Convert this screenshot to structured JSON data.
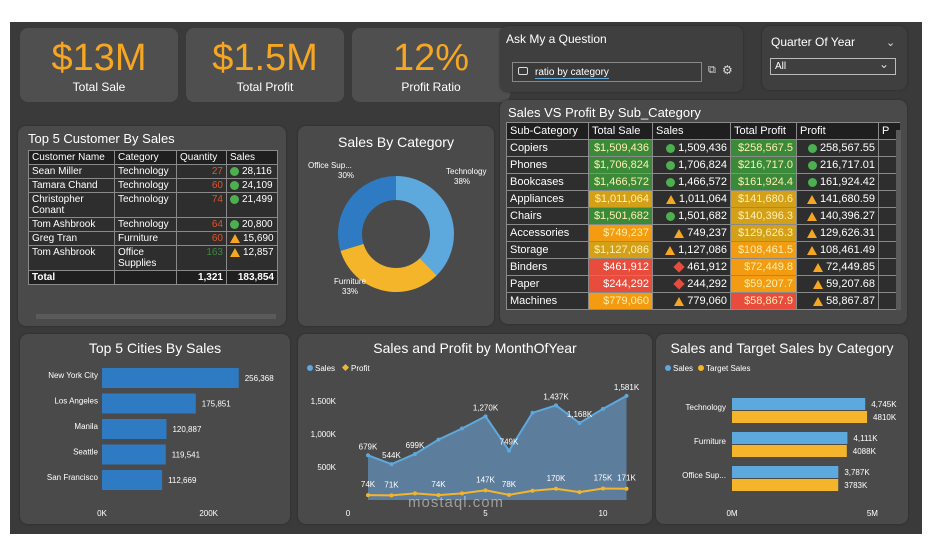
{
  "kpis": {
    "total_sale": {
      "value": "$13M",
      "label": "Total Sale"
    },
    "total_profit": {
      "value": "$1.5M",
      "label": "Total Profit"
    },
    "profit_ratio": {
      "value": "12%",
      "label": "Profit Ratio"
    }
  },
  "qa": {
    "title": "Ask My a Question",
    "query": "ratio by category"
  },
  "quarter": {
    "title": "Quarter Of Year",
    "selected": "All"
  },
  "customers": {
    "title": "Top 5 Customer By Sales",
    "headers": [
      "Customer Name",
      "Category",
      "Quantity",
      "Sales"
    ],
    "rows": [
      {
        "name": "Sean Miller",
        "category": "Technology",
        "qty": "27",
        "sales": "28,116",
        "indicator": "dot"
      },
      {
        "name": "Tamara Chand",
        "category": "Technology",
        "qty": "60",
        "sales": "24,109",
        "indicator": "dot"
      },
      {
        "name": "Christopher Conant",
        "category": "Technology",
        "qty": "74",
        "sales": "21,499",
        "indicator": "dot"
      },
      {
        "name": "Tom Ashbrook",
        "category": "Technology",
        "qty": "64",
        "sales": "20,800",
        "indicator": "dot"
      },
      {
        "name": "Greg Tran",
        "category": "Furniture",
        "qty": "60",
        "sales": "15,690",
        "indicator": "tri"
      },
      {
        "name": "Tom Ashbrook",
        "category": "Office Supplies",
        "qty": "163",
        "sales": "12,857",
        "indicator": "tri"
      }
    ],
    "total": {
      "label": "Total",
      "qty": "1,321",
      "sales": "183,854"
    }
  },
  "sales_by_category": {
    "title": "Sales By Category"
  },
  "subcat": {
    "title": "Sales VS Profit By Sub_Category",
    "headers": [
      "Sub-Category",
      "Total Sale",
      "Sales",
      "Total Profit",
      "Profit",
      "P"
    ],
    "rows": [
      {
        "name": "Copiers",
        "ts": "$1,509,436",
        "s": "1,509,436",
        "tp": "$258,567.5",
        "p": "258,567.55",
        "si": "dot",
        "pi": "dot",
        "tsc": "#3a8a3a",
        "tpc": "#3a8a3a"
      },
      {
        "name": "Phones",
        "ts": "$1,706,824",
        "s": "1,706,824",
        "tp": "$216,717.0",
        "p": "216,717.01",
        "si": "dot",
        "pi": "dot",
        "tsc": "#3a8a3a",
        "tpc": "#3a8a3a"
      },
      {
        "name": "Bookcases",
        "ts": "$1,466,572",
        "s": "1,466,572",
        "tp": "$161,924.4",
        "p": "161,924.42",
        "si": "dot",
        "pi": "dot",
        "tsc": "#3a8a3a",
        "tpc": "#3a8a3a"
      },
      {
        "name": "Appliances",
        "ts": "$1,011,064",
        "s": "1,011,064",
        "tp": "$141,680.6",
        "p": "141,680.59",
        "si": "tri",
        "pi": "tri",
        "tsc": "#d4a017",
        "tpc": "#d4a017"
      },
      {
        "name": "Chairs",
        "ts": "$1,501,682",
        "s": "1,501,682",
        "tp": "$140,396.3",
        "p": "140,396.27",
        "si": "dot",
        "pi": "tri",
        "tsc": "#3a8a3a",
        "tpc": "#d4a017"
      },
      {
        "name": "Accessories",
        "ts": "$749,237",
        "s": "749,237",
        "tp": "$129,626.3",
        "p": "129,626.31",
        "si": "tri",
        "pi": "tri",
        "tsc": "#f39c12",
        "tpc": "#d4a017"
      },
      {
        "name": "Storage",
        "ts": "$1,127,086",
        "s": "1,127,086",
        "tp": "$108,461.5",
        "p": "108,461.49",
        "si": "tri",
        "pi": "tri",
        "tsc": "#d4a017",
        "tpc": "#f39c12"
      },
      {
        "name": "Binders",
        "ts": "$461,912",
        "s": "461,912",
        "tp": "$72,449.8",
        "p": "72,449.85",
        "si": "dia",
        "pi": "tri",
        "tsc": "#e74c3c",
        "tpc": "#f39c12"
      },
      {
        "name": "Paper",
        "ts": "$244,292",
        "s": "244,292",
        "tp": "$59,207.7",
        "p": "59,207.68",
        "si": "dia",
        "pi": "tri",
        "tsc": "#e74c3c",
        "tpc": "#f39c12"
      },
      {
        "name": "Machines",
        "ts": "$779,060",
        "s": "779,060",
        "tp": "$58,867.9",
        "p": "58,867.87",
        "si": "tri",
        "pi": "tri",
        "tsc": "#f39c12",
        "tpc": "#e74c3c"
      }
    ]
  },
  "colors": {
    "blue": "#2e7bc4",
    "lightblue": "#5da8dd",
    "orange": "#f5b52a",
    "panel": "#4a4a4a",
    "accent": "#f5a623"
  },
  "chart_data": [
    {
      "type": "pie",
      "title": "Sales By Category",
      "categories": [
        "Technology",
        "Furniture",
        "Office Supplies"
      ],
      "display_labels": [
        "Technology",
        "Furniture",
        "Office Sup..."
      ],
      "values": [
        38,
        33,
        30
      ],
      "value_labels": [
        "38%",
        "33%",
        "30%"
      ],
      "colors": [
        "#5da8dd",
        "#f5b52a",
        "#2e7bc4"
      ]
    },
    {
      "type": "bar",
      "title": "Top 5 Cities By Sales",
      "categories": [
        "New York City",
        "Los Angeles",
        "Manila",
        "Seattle",
        "San Francisco"
      ],
      "values": [
        256368,
        175851,
        120887,
        119541,
        112669
      ],
      "value_labels": [
        "256,368",
        "175,851",
        "120,887",
        "119,541",
        "112,669"
      ],
      "xlim": [
        0,
        300000
      ],
      "xticks": [
        0,
        200000
      ],
      "xtick_labels": [
        "0K",
        "200K"
      ]
    },
    {
      "type": "area",
      "title": "Sales and Profit by MonthOfYear",
      "x": [
        1,
        2,
        3,
        4,
        5,
        6,
        7,
        8,
        9,
        10,
        11,
        12
      ],
      "series": [
        {
          "name": "Sales",
          "values": [
            679,
            544,
            699,
            917,
            1085,
            1270,
            749,
            1323,
            1437,
            1168,
            1384,
            1581
          ],
          "labels": [
            "679K",
            "544K",
            "699K",
            "",
            "",
            "1,270K",
            "749K",
            "",
            "1,437K",
            "1,168K",
            "",
            "1,581K"
          ]
        },
        {
          "name": "Profit",
          "values": [
            74,
            71,
            101,
            74,
            100,
            147,
            78,
            140,
            170,
            120,
            175,
            171
          ],
          "labels": [
            "74K",
            "71K",
            "",
            "74K",
            "",
            "147K",
            "78K",
            "",
            "170K",
            "",
            "175K",
            "171K"
          ]
        }
      ],
      "ylim": [
        0,
        1700
      ],
      "yticks": [
        "500K",
        "1,000K",
        "1,500K"
      ],
      "xticks": [
        "0",
        "5",
        "10"
      ]
    },
    {
      "type": "bar",
      "title": "Sales and Target Sales by Category",
      "categories": [
        "Technology",
        "Furniture",
        "Office Sup..."
      ],
      "series": [
        {
          "name": "Sales",
          "values": [
            4.745,
            4.111,
            3.787
          ],
          "labels": [
            "4,745K",
            "4,111K",
            "3,787K"
          ]
        },
        {
          "name": "Target Sales",
          "values": [
            4.81,
            4.088,
            3.783
          ],
          "labels": [
            "4810K",
            "4088K",
            "3783K"
          ]
        }
      ],
      "xlim": [
        0,
        5.2
      ],
      "xtick_labels": [
        "0M",
        "5M"
      ]
    }
  ],
  "watermark": {
    "text": "mostaql.com"
  }
}
